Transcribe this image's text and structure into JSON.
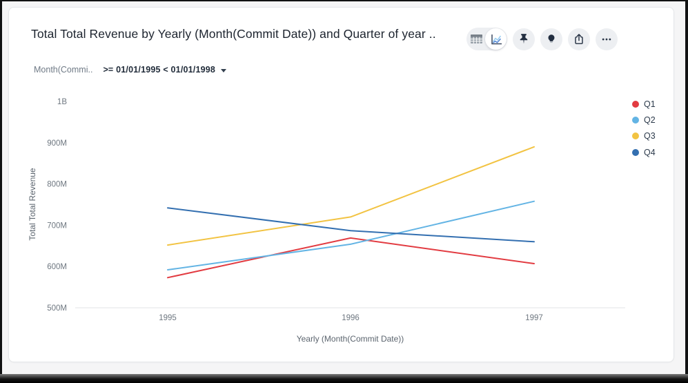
{
  "header": {
    "title": "Total Total Revenue by Yearly (Month(Commit Date)) and Quarter of year .."
  },
  "toolbar": {
    "buttons": [
      {
        "icon": "table-view-icon",
        "selected": false
      },
      {
        "icon": "chart-view-icon",
        "selected": true
      },
      {
        "icon": "pin-icon"
      },
      {
        "icon": "lightbulb-icon"
      },
      {
        "icon": "share-icon"
      },
      {
        "icon": "ellipsis-icon"
      }
    ]
  },
  "filter": {
    "field": "Month(Commi..",
    "condition": ">= 01/01/1995 < 01/01/1998"
  },
  "chart_data": {
    "type": "line",
    "categories": [
      "1995",
      "1996",
      "1997"
    ],
    "series": [
      {
        "name": "Q1",
        "color": "#e23b41",
        "values": [
          573,
          669,
          607
        ]
      },
      {
        "name": "Q2",
        "color": "#63b4e4",
        "values": [
          592,
          654,
          758
        ]
      },
      {
        "name": "Q3",
        "color": "#f2c342",
        "values": [
          652,
          720,
          890
        ]
      },
      {
        "name": "Q4",
        "color": "#336fb0",
        "values": [
          742,
          687,
          660
        ]
      }
    ],
    "xlabel": "Yearly (Month(Commit Date))",
    "ylabel": "Total Total Revenue",
    "ylim": [
      500,
      1000
    ],
    "yticks": [
      {
        "value": 1000,
        "label": "1B"
      },
      {
        "value": 900,
        "label": "900M"
      },
      {
        "value": 800,
        "label": "800M"
      },
      {
        "value": 700,
        "label": "700M"
      },
      {
        "value": 600,
        "label": "600M"
      },
      {
        "value": 500,
        "label": "500M"
      }
    ],
    "legend_position": "right",
    "grid": false,
    "axis_color": "#e1e3e6"
  }
}
